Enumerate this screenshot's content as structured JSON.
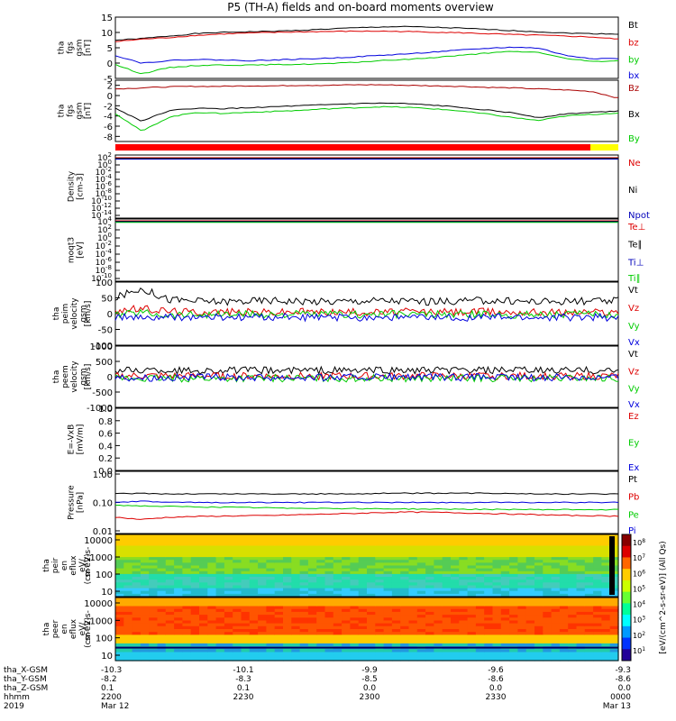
{
  "chart_data": {
    "type": "line",
    "title": "P5 (TH-A) fields and on-board moments overview",
    "panels": [
      {
        "id": "fgs",
        "ylabel_lines": [
          "tha",
          "fgs",
          "gsm",
          "[nT]"
        ],
        "yticks": [
          "15",
          "10",
          "5",
          "0",
          "-5"
        ],
        "ylim": [
          -5,
          15
        ],
        "series": [
          {
            "name": "Bt",
            "color": "#000000",
            "values": [
              7.5,
              8.0,
              8.8,
              9.6,
              10.0,
              10.2,
              10.4,
              10.7,
              11.1,
              11.5,
              11.8,
              11.9,
              11.7,
              11.4,
              11.0,
              10.6,
              10.2,
              9.8,
              9.6,
              9.5
            ]
          },
          {
            "name": "bz",
            "color": "#dd0000",
            "values": [
              7.0,
              7.8,
              8.3,
              9.0,
              9.5,
              9.8,
              10.0,
              10.2,
              10.3,
              10.4,
              10.4,
              10.3,
              10.1,
              9.9,
              9.6,
              9.3,
              9.1,
              8.8,
              8.5,
              7.8
            ]
          },
          {
            "name": "by",
            "color": "#00cc00",
            "values": [
              -0.5,
              -3.5,
              -1.5,
              -0.8,
              -0.6,
              -0.7,
              -0.5,
              -0.4,
              -0.2,
              0.2,
              0.8,
              1.2,
              1.8,
              2.5,
              3.2,
              3.8,
              3.5,
              1.5,
              0.5,
              0.8
            ]
          },
          {
            "name": "bx",
            "color": "#0000dd",
            "values": [
              2.5,
              0.0,
              0.8,
              1.2,
              1.0,
              0.8,
              1.0,
              1.3,
              1.6,
              2.0,
              2.5,
              3.0,
              3.6,
              4.2,
              4.8,
              5.2,
              4.9,
              2.5,
              1.5,
              1.5
            ]
          }
        ]
      },
      {
        "id": "fgs_gse",
        "ylabel_lines": [
          "tha",
          "fgs",
          "gsm",
          "[nT]"
        ],
        "yticks": [
          "2",
          "0",
          "-2",
          "-4",
          "-6",
          "-8"
        ],
        "ylim": [
          -9,
          3
        ],
        "series": [
          {
            "name": "Bz",
            "color": "#aa0000",
            "values": [
              1.3,
              1.5,
              1.7,
              1.8,
              1.8,
              1.9,
              1.9,
              2.0,
              2.0,
              2.1,
              2.1,
              2.0,
              1.9,
              1.8,
              1.6,
              1.5,
              1.3,
              1.1,
              0.8,
              -0.5
            ]
          },
          {
            "name": "Bx",
            "color": "#000000",
            "values": [
              -2.5,
              -5.0,
              -3.0,
              -2.5,
              -2.6,
              -2.4,
              -2.2,
              -2.0,
              -1.8,
              -1.6,
              -1.5,
              -1.6,
              -1.9,
              -2.3,
              -2.8,
              -3.4,
              -4.3,
              -3.6,
              -3.3,
              -3.0
            ]
          },
          {
            "name": "By",
            "color": "#00cc00",
            "values": [
              -3.5,
              -7.0,
              -4.3,
              -3.3,
              -3.5,
              -3.3,
              -3.1,
              -2.9,
              -2.6,
              -2.4,
              -2.2,
              -2.3,
              -2.6,
              -3.0,
              -3.6,
              -4.3,
              -4.9,
              -4.0,
              -3.7,
              -3.4
            ]
          }
        ]
      },
      {
        "id": "density",
        "ylabel_lines": [
          "Density",
          "[cm-3]"
        ],
        "ytick_exponents": [
          "2",
          "0",
          "-2",
          "-4",
          "-6",
          "-8",
          "-10",
          "-12",
          "-14"
        ],
        "ylog": true,
        "series": [
          {
            "name": "Ne",
            "color": "#dd0000"
          },
          {
            "name": "Ni",
            "color": "#000000"
          },
          {
            "name": "Npot",
            "color": "#0000bb"
          }
        ]
      },
      {
        "id": "temperature",
        "ylabel_lines": [
          "moqt3",
          "[eV]"
        ],
        "ytick_exponents": [
          "4",
          "2",
          "0",
          "-2",
          "-4",
          "-6",
          "-8",
          "-10"
        ],
        "ylog": true,
        "series": [
          {
            "name": "Te⊥",
            "color": "#dd0000"
          },
          {
            "name": "Te∥",
            "color": "#000000"
          },
          {
            "name": "Ti⊥",
            "color": "#0000bb"
          },
          {
            "name": "Ti∥",
            "color": "#00cc00"
          }
        ]
      },
      {
        "id": "peim_velocity",
        "ylabel_lines": [
          "tha",
          "peim",
          "velocity",
          "gsm",
          "[km/s]"
        ],
        "yticks": [
          "100",
          "50",
          "0",
          "-50",
          "-100"
        ],
        "ylim": [
          -100,
          100
        ],
        "series": [
          {
            "name": "Vt",
            "color": "#000000",
            "values": [
              50,
              80,
              45,
              40,
              38,
              40,
              42,
              40,
              38,
              40,
              42,
              40,
              38,
              40,
              42,
              40,
              38,
              40,
              38,
              40
            ]
          },
          {
            "name": "Vz",
            "color": "#dd0000",
            "values": [
              10,
              15,
              8,
              5,
              6,
              5,
              4,
              6,
              5,
              5,
              4,
              6,
              5,
              5,
              6,
              5,
              5,
              4,
              5,
              5
            ]
          },
          {
            "name": "Vy",
            "color": "#00cc00",
            "values": [
              -5,
              5,
              -5,
              -2,
              -3,
              -2,
              -3,
              -2,
              -2,
              -3,
              -2,
              -2,
              -3,
              -2,
              -2,
              -3,
              -2,
              -2,
              -3,
              -2
            ]
          },
          {
            "name": "Vx",
            "color": "#0000dd",
            "values": [
              -10,
              -15,
              -12,
              -12,
              -13,
              -12,
              -11,
              -12,
              -13,
              -12,
              -11,
              -12,
              -13,
              -12,
              -11,
              -12,
              -13,
              -12,
              -11,
              -12
            ]
          }
        ]
      },
      {
        "id": "peem_velocity",
        "ylabel_lines": [
          "tha",
          "peem",
          "velocity",
          "gsm",
          "[km/s]"
        ],
        "yticks": [
          "1000",
          "500",
          "0",
          "-500",
          "-1000"
        ],
        "ylim": [
          -1000,
          1000
        ],
        "series": [
          {
            "name": "Vt",
            "color": "#000000",
            "values": [
              200,
              220,
              210,
              200,
              210,
              205,
              200,
              210,
              205,
              200,
              210,
              205,
              200,
              210,
              200,
              205,
              200,
              210,
              200,
              200
            ]
          },
          {
            "name": "Vz",
            "color": "#dd0000",
            "values": [
              20,
              30,
              25,
              20,
              25,
              20,
              15,
              20,
              25,
              20,
              15,
              20,
              25,
              20,
              15,
              20,
              25,
              20,
              15,
              20
            ]
          },
          {
            "name": "Vy",
            "color": "#00cc00",
            "values": [
              -50,
              -60,
              -55,
              -50,
              -55,
              -50,
              -45,
              -50,
              -55,
              -50,
              -45,
              -50,
              -55,
              -50,
              -45,
              -50,
              -55,
              -50,
              -45,
              -50
            ]
          },
          {
            "name": "Vx",
            "color": "#0000dd",
            "values": [
              -20,
              -30,
              -25,
              -20,
              -25,
              -20,
              -15,
              -20,
              -25,
              -20,
              -15,
              -20,
              -25,
              -20,
              -15,
              -20,
              -25,
              -20,
              -15,
              -20
            ]
          }
        ]
      },
      {
        "id": "efield",
        "ylabel_lines": [
          "E=-VxB",
          "[mV/m]"
        ],
        "yticks": [
          "1.0",
          "0.8",
          "0.6",
          "0.4",
          "0.2",
          "0.0"
        ],
        "ylim": [
          0,
          1
        ],
        "series": [
          {
            "name": "Ez",
            "color": "#dd0000"
          },
          {
            "name": "Ey",
            "color": "#00cc00"
          },
          {
            "name": "Ex",
            "color": "#0000dd"
          }
        ]
      },
      {
        "id": "pressure",
        "ylabel_lines": [
          "Pressure",
          "[nPa]"
        ],
        "yticks": [
          "1.00",
          "0.10",
          "0.01"
        ],
        "ylog": true,
        "ylim": [
          0.01,
          1.0
        ],
        "series": [
          {
            "name": "Pt",
            "color": "#000000",
            "values": [
              0.2,
              0.21,
              0.2,
              0.2,
              0.2,
              0.2,
              0.2,
              0.2,
              0.2,
              0.2,
              0.21,
              0.21,
              0.21,
              0.21,
              0.21,
              0.21,
              0.2,
              0.2,
              0.2,
              0.2
            ]
          },
          {
            "name": "Pb",
            "color": "#dd0000",
            "values": [
              0.03,
              0.025,
              0.03,
              0.032,
              0.033,
              0.034,
              0.035,
              0.037,
              0.039,
              0.041,
              0.044,
              0.046,
              0.045,
              0.043,
              0.041,
              0.039,
              0.037,
              0.035,
              0.034,
              0.033
            ]
          },
          {
            "name": "Pe",
            "color": "#00cc00",
            "values": [
              0.08,
              0.075,
              0.072,
              0.07,
              0.068,
              0.066,
              0.064,
              0.063,
              0.062,
              0.061,
              0.06,
              0.059,
              0.058,
              0.058,
              0.057,
              0.057,
              0.056,
              0.056,
              0.056,
              0.056
            ]
          },
          {
            "name": "Pi",
            "color": "#0000dd",
            "values": [
              0.1,
              0.11,
              0.1,
              0.1,
              0.1,
              0.1,
              0.1,
              0.1,
              0.1,
              0.1,
              0.1,
              0.1,
              0.1,
              0.1,
              0.1,
              0.1,
              0.1,
              0.1,
              0.1,
              0.1
            ]
          }
        ]
      },
      {
        "id": "peir_spectrogram",
        "type": "heatmap",
        "ylabel_lines": [
          "tha",
          "peir",
          "en",
          "eflux",
          "eV/",
          "(cm^2-s-",
          "sr-eV)"
        ],
        "yticks": [
          "10000",
          "1000",
          "100",
          "10"
        ],
        "ylog": true
      },
      {
        "id": "peer_spectrogram",
        "type": "heatmap",
        "ylabel_lines": [
          "tha",
          "peer",
          "en",
          "eflux",
          "eV/",
          "(cm^2-s-",
          "sr-eV)"
        ],
        "yticks": [
          "10000",
          "1000",
          "100",
          "10"
        ],
        "ylog": true
      }
    ],
    "colorbar": {
      "label": "[eV/(cm^2-s-sr-eV)] (All Qs)",
      "exponents": [
        "8",
        "7",
        "6",
        "5",
        "4",
        "3",
        "2",
        "1"
      ]
    },
    "xaxis": {
      "rows": [
        {
          "label": "tha_X-GSM",
          "values": [
            "-10.3",
            "-10.1",
            "-9.9",
            "-9.6",
            "-9.3"
          ]
        },
        {
          "label": "tha_Y-GSM",
          "values": [
            "-8.2",
            "-8.3",
            "-8.5",
            "-8.6",
            "-8.6"
          ]
        },
        {
          "label": "tha_Z-GSM",
          "values": [
            "0.1",
            "0.1",
            "0.0",
            "0.0",
            "0.0"
          ]
        },
        {
          "label": "hhmm",
          "values": [
            "2200",
            "2230",
            "2300",
            "2330",
            "0000"
          ]
        },
        {
          "label": "2019",
          "values": [
            "Mar 12",
            "",
            "",
            "",
            "Mar 13"
          ]
        }
      ]
    }
  }
}
